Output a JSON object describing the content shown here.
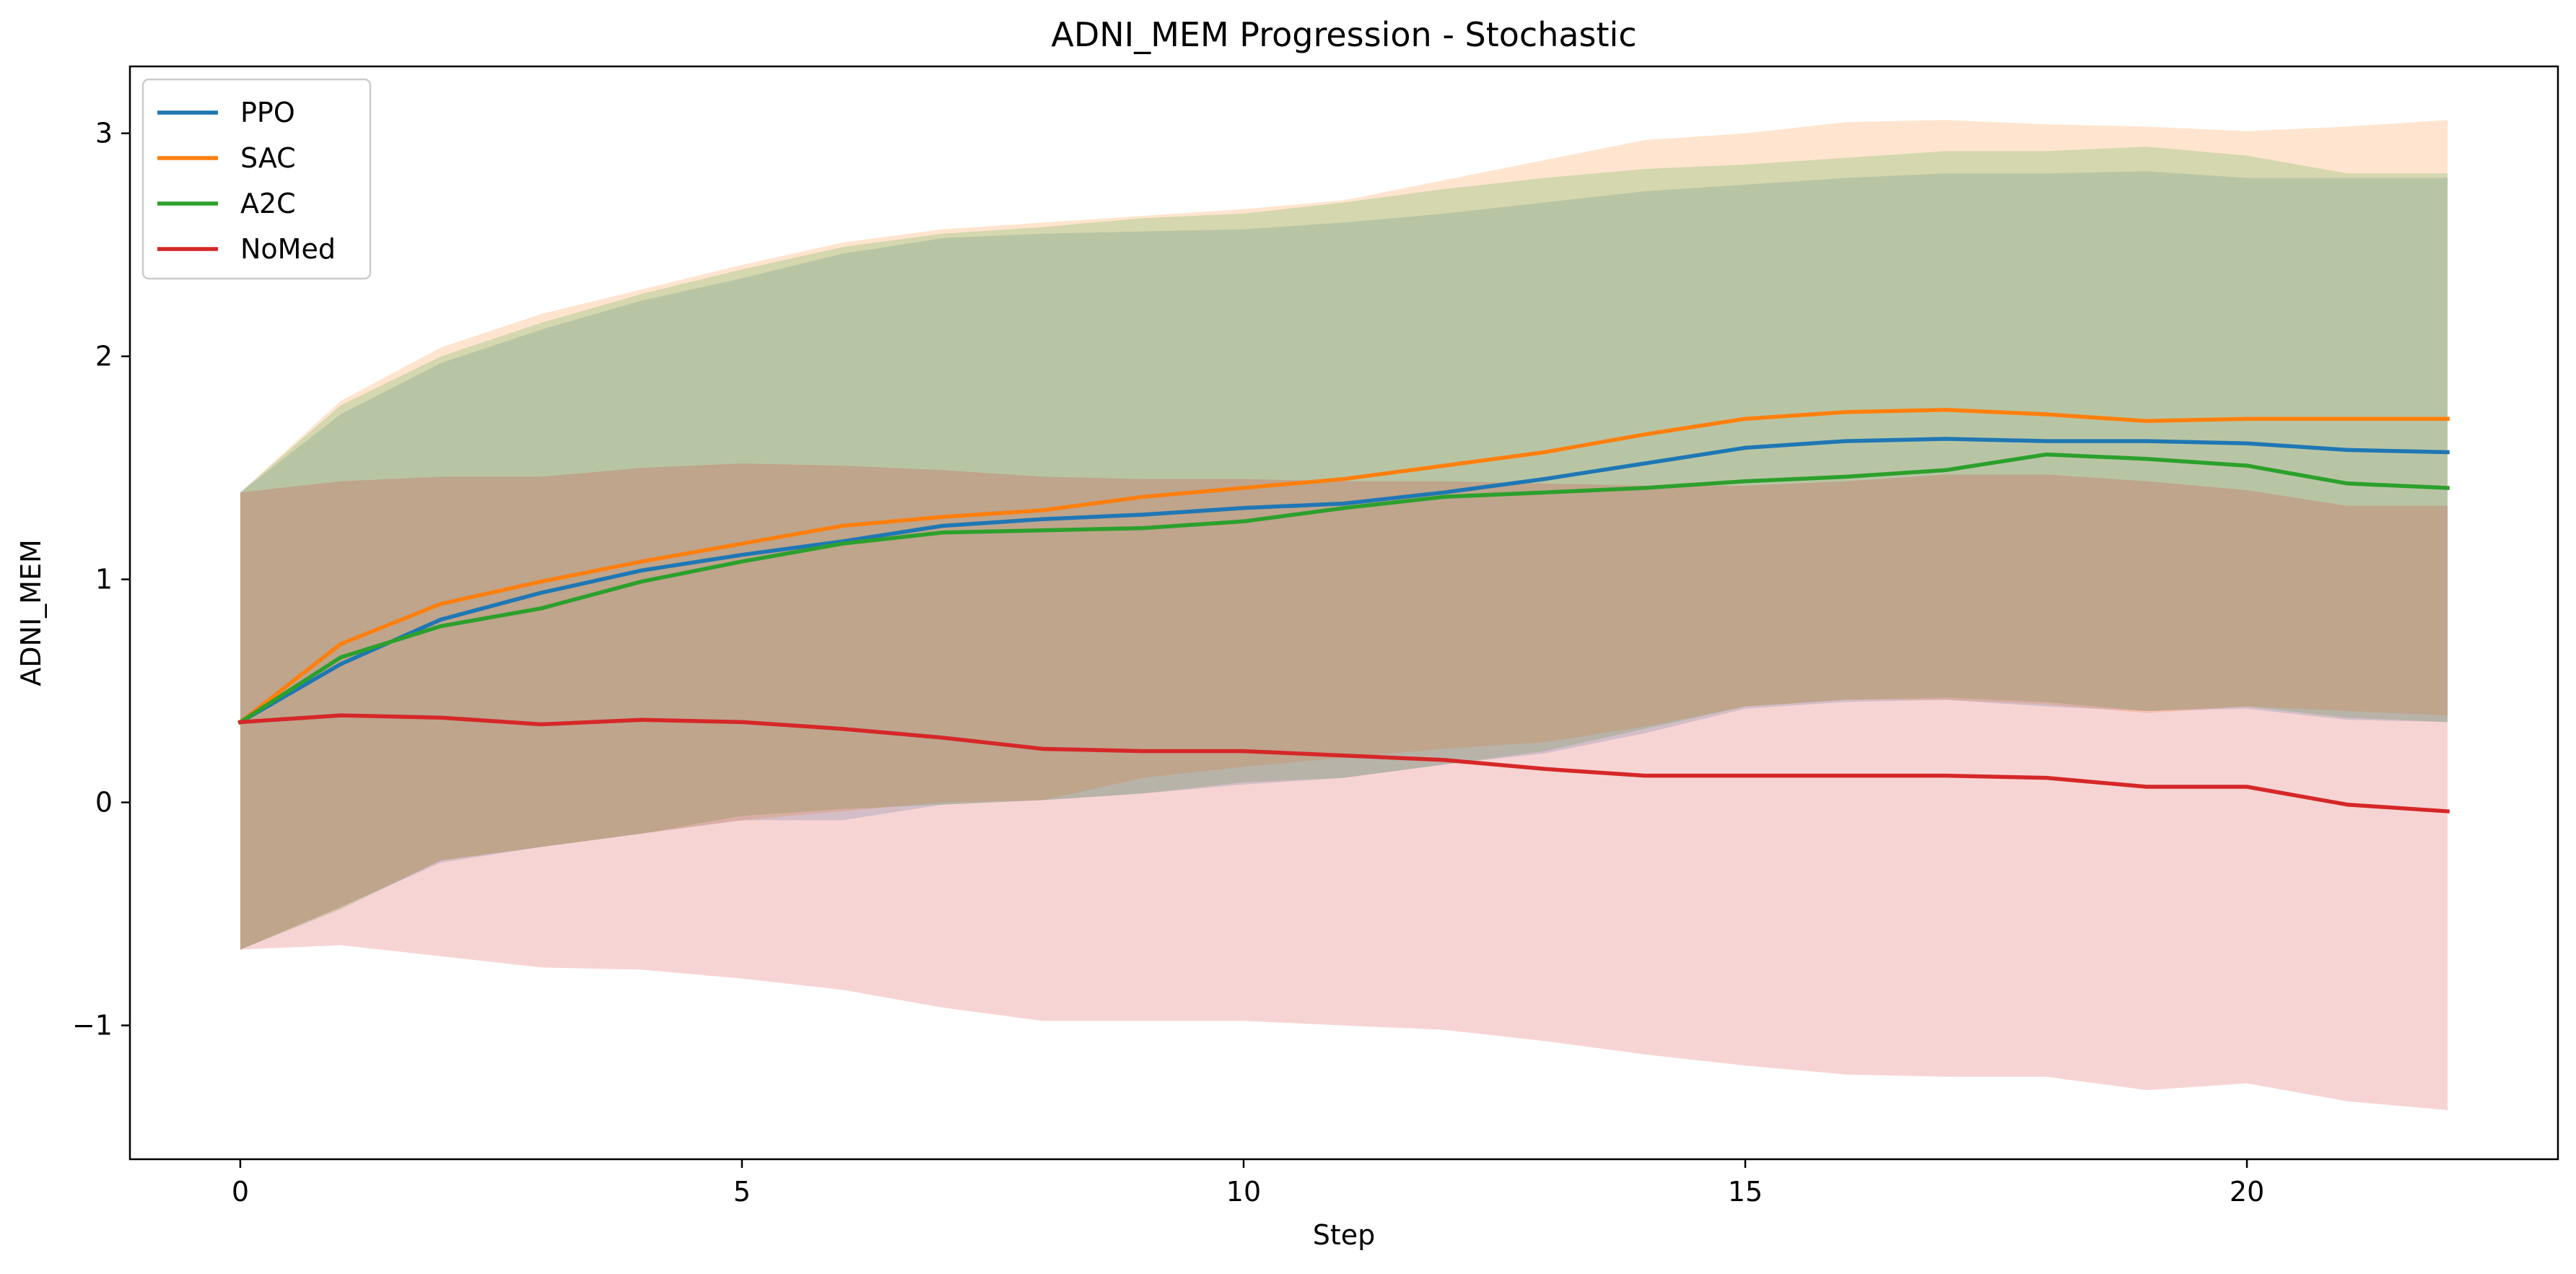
{
  "chart_data": {
    "type": "line",
    "title": "ADNI_MEM Progression - Stochastic",
    "xlabel": "Step",
    "ylabel": "ADNI_MEM",
    "xlim": [
      -1.1,
      23.1
    ],
    "ylim": [
      -1.6,
      3.3
    ],
    "xticks": [
      0,
      5,
      10,
      15,
      20
    ],
    "yticks": [
      -1,
      0,
      1,
      2,
      3
    ],
    "ytick_labels": [
      "−1",
      "0",
      "1",
      "2",
      "3"
    ],
    "grid": false,
    "legend_position": "top-left",
    "x": [
      0,
      1,
      2,
      3,
      4,
      5,
      6,
      7,
      8,
      9,
      10,
      11,
      12,
      13,
      14,
      15,
      16,
      17,
      18,
      19,
      20,
      21,
      22
    ],
    "series": [
      {
        "name": "PPO",
        "color": "#1f77b4",
        "band_alpha": 0.2,
        "values": [
          0.36,
          0.62,
          0.82,
          0.94,
          1.04,
          1.11,
          1.17,
          1.24,
          1.27,
          1.29,
          1.32,
          1.34,
          1.39,
          1.45,
          1.52,
          1.59,
          1.62,
          1.63,
          1.62,
          1.62,
          1.61,
          1.58,
          1.57
        ],
        "upper": [
          1.39,
          1.74,
          1.97,
          2.12,
          2.25,
          2.35,
          2.46,
          2.53,
          2.55,
          2.56,
          2.57,
          2.6,
          2.64,
          2.69,
          2.74,
          2.77,
          2.8,
          2.82,
          2.82,
          2.83,
          2.8,
          2.8,
          2.8
        ],
        "lower": [
          -0.66,
          -0.47,
          -0.27,
          -0.2,
          -0.14,
          -0.08,
          -0.08,
          -0.01,
          0.01,
          0.04,
          0.08,
          0.11,
          0.17,
          0.22,
          0.31,
          0.42,
          0.45,
          0.46,
          0.43,
          0.41,
          0.42,
          0.37,
          0.36
        ]
      },
      {
        "name": "SAC",
        "color": "#ff7f0e",
        "band_alpha": 0.2,
        "values": [
          0.36,
          0.71,
          0.89,
          0.99,
          1.08,
          1.16,
          1.24,
          1.28,
          1.31,
          1.37,
          1.41,
          1.45,
          1.51,
          1.57,
          1.65,
          1.72,
          1.75,
          1.76,
          1.74,
          1.71,
          1.72,
          1.72,
          1.72
        ],
        "upper": [
          1.39,
          1.8,
          2.04,
          2.19,
          2.3,
          2.41,
          2.51,
          2.57,
          2.6,
          2.63,
          2.66,
          2.7,
          2.79,
          2.88,
          2.97,
          3.0,
          3.05,
          3.06,
          3.04,
          3.03,
          3.01,
          3.03,
          3.06
        ],
        "lower": [
          -0.66,
          -0.47,
          -0.26,
          -0.2,
          -0.14,
          -0.08,
          -0.04,
          0.0,
          0.01,
          0.11,
          0.16,
          0.2,
          0.24,
          0.27,
          0.34,
          0.43,
          0.46,
          0.46,
          0.44,
          0.4,
          0.43,
          0.41,
          0.39
        ]
      },
      {
        "name": "A2C",
        "color": "#2ca02c",
        "band_alpha": 0.2,
        "values": [
          0.36,
          0.65,
          0.79,
          0.87,
          0.99,
          1.08,
          1.16,
          1.21,
          1.22,
          1.23,
          1.26,
          1.32,
          1.37,
          1.39,
          1.41,
          1.44,
          1.46,
          1.49,
          1.56,
          1.54,
          1.51,
          1.43,
          1.41
        ],
        "upper": [
          1.39,
          1.78,
          2.0,
          2.15,
          2.28,
          2.39,
          2.49,
          2.55,
          2.58,
          2.62,
          2.64,
          2.69,
          2.75,
          2.8,
          2.84,
          2.86,
          2.89,
          2.92,
          2.92,
          2.94,
          2.9,
          2.82,
          2.82
        ],
        "lower": [
          -0.66,
          -0.48,
          -0.26,
          -0.2,
          -0.14,
          -0.06,
          -0.03,
          -0.01,
          0.01,
          0.04,
          0.09,
          0.11,
          0.17,
          0.23,
          0.33,
          0.43,
          0.46,
          0.47,
          0.45,
          0.41,
          0.43,
          0.38,
          0.36
        ]
      },
      {
        "name": "NoMed",
        "color": "#d62728",
        "band_alpha": 0.2,
        "values": [
          0.36,
          0.39,
          0.38,
          0.35,
          0.37,
          0.36,
          0.33,
          0.29,
          0.24,
          0.23,
          0.23,
          0.21,
          0.19,
          0.15,
          0.12,
          0.12,
          0.12,
          0.12,
          0.11,
          0.07,
          0.07,
          -0.01,
          -0.04
        ],
        "upper": [
          1.39,
          1.44,
          1.46,
          1.46,
          1.5,
          1.52,
          1.51,
          1.49,
          1.46,
          1.45,
          1.45,
          1.44,
          1.44,
          1.43,
          1.42,
          1.42,
          1.44,
          1.47,
          1.47,
          1.44,
          1.4,
          1.33,
          1.33
        ],
        "lower": [
          -0.66,
          -0.64,
          -0.69,
          -0.74,
          -0.75,
          -0.79,
          -0.84,
          -0.92,
          -0.98,
          -0.98,
          -0.98,
          -1.0,
          -1.02,
          -1.07,
          -1.13,
          -1.18,
          -1.22,
          -1.23,
          -1.23,
          -1.29,
          -1.26,
          -1.34,
          -1.38
        ]
      }
    ]
  }
}
